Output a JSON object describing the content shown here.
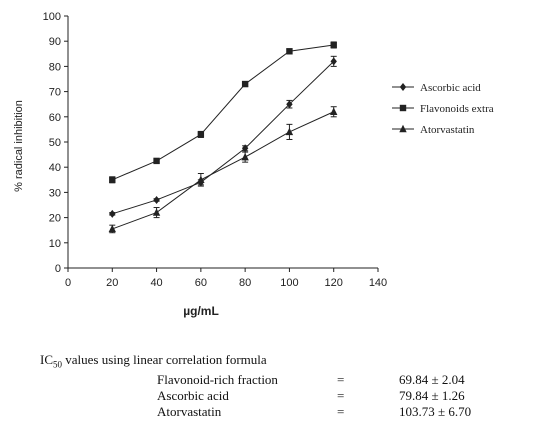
{
  "chart_data": {
    "type": "line",
    "title": "",
    "xlabel": "µg/mL",
    "ylabel": "% radical inhibition",
    "xlim": [
      0,
      140
    ],
    "ylim": [
      0,
      100
    ],
    "x_ticks": [
      0,
      20,
      40,
      60,
      80,
      100,
      120,
      140
    ],
    "y_ticks": [
      0,
      10,
      20,
      30,
      40,
      50,
      60,
      70,
      80,
      90,
      100
    ],
    "x": [
      20,
      40,
      60,
      80,
      100,
      120
    ],
    "grid": false,
    "legend_position": "right",
    "series": [
      {
        "name": "Ascorbic acid",
        "marker": "diamond",
        "values": [
          21.5,
          27,
          34,
          47.5,
          65,
          82
        ],
        "errors": [
          0.5,
          0.5,
          1,
          1,
          1.5,
          2
        ]
      },
      {
        "name": "Flavonoids extra",
        "marker": "square",
        "values": [
          35,
          42.5,
          53,
          73,
          86,
          88.5
        ],
        "errors": [
          1.2,
          0.8,
          1.2,
          1,
          0.8,
          1.2
        ]
      },
      {
        "name": "Atorvastatin",
        "marker": "triangle",
        "values": [
          15.5,
          22,
          35,
          44,
          54,
          62
        ],
        "errors": [
          1.5,
          2,
          2.5,
          2,
          3,
          2
        ]
      }
    ]
  },
  "ic50": {
    "heading_prefix": "IC",
    "heading_sub": "50",
    "heading_suffix": " values using linear correlation formula",
    "rows": [
      {
        "name": "Flavonoid-rich fraction",
        "eq": "=",
        "value": "69.84 ± 2.04"
      },
      {
        "name": "Ascorbic acid",
        "eq": "=",
        "value": "79.84 ± 1.26"
      },
      {
        "name": "Atorvastatin",
        "eq": "=",
        "value": "103.73 ± 6.70"
      }
    ]
  }
}
